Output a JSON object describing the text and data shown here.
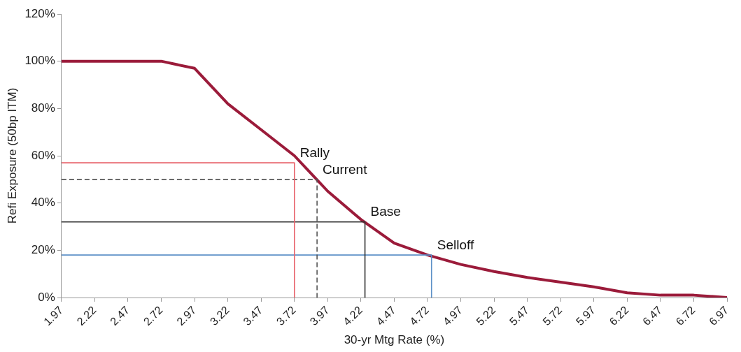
{
  "chart_data": {
    "type": "line",
    "xlabel": "30-yr Mtg Rate (%)",
    "ylabel": "Refi Exposure (50bp ITM)",
    "xlim": [
      1.97,
      6.97
    ],
    "xticks": [
      1.97,
      2.22,
      2.47,
      2.72,
      2.97,
      3.22,
      3.47,
      3.72,
      3.97,
      4.22,
      4.47,
      4.72,
      4.97,
      5.22,
      5.47,
      5.72,
      5.97,
      6.22,
      6.47,
      6.72,
      6.97
    ],
    "ylim": [
      0,
      120
    ],
    "yticks": [
      {
        "value": 0,
        "label": "0%"
      },
      {
        "value": 20,
        "label": "20%"
      },
      {
        "value": 40,
        "label": "40%"
      },
      {
        "value": 60,
        "label": "60%"
      },
      {
        "value": 80,
        "label": "80%"
      },
      {
        "value": 100,
        "label": "100%"
      },
      {
        "value": 120,
        "label": "120%"
      }
    ],
    "grid": false,
    "legend": false,
    "marker": "none",
    "series": [
      {
        "color": "#e8636b",
        "line_style": "solid",
        "x": [
          1.97,
          3.72,
          3.72
        ],
        "values": [
          57,
          57,
          0
        ]
      },
      {
        "color": "#555555",
        "line_style": "dashed",
        "x": [
          1.97,
          3.89,
          3.89
        ],
        "values": [
          50,
          50,
          0
        ]
      },
      {
        "color": "#333333",
        "line_style": "solid",
        "x": [
          1.97,
          4.25,
          4.25
        ],
        "values": [
          32,
          32,
          0
        ]
      },
      {
        "color": "#5b8fc7",
        "line_style": "solid",
        "x": [
          1.97,
          4.75,
          4.75
        ],
        "values": [
          18,
          18,
          0
        ]
      },
      {
        "color": "#9b1b3a",
        "line_style": "solid",
        "x": [
          1.97,
          2.22,
          2.47,
          2.72,
          2.97,
          3.22,
          3.47,
          3.72,
          3.97,
          4.22,
          4.47,
          4.72,
          4.97,
          5.22,
          5.47,
          5.72,
          5.97,
          6.22,
          6.47,
          6.72,
          6.97
        ],
        "values": [
          100,
          100,
          100,
          100,
          97,
          82,
          71,
          60,
          45,
          33,
          23,
          18,
          14,
          11,
          8.5,
          6.5,
          4.5,
          2,
          1,
          1,
          0
        ]
      }
    ],
    "annotations": [
      {
        "text": "Rally",
        "x": 3.72,
        "y": 57
      },
      {
        "text": "Current",
        "x": 3.89,
        "y": 50
      },
      {
        "text": "Base",
        "x": 4.25,
        "y": 32
      },
      {
        "text": "Selloff",
        "x": 4.75,
        "y": 18
      }
    ]
  }
}
